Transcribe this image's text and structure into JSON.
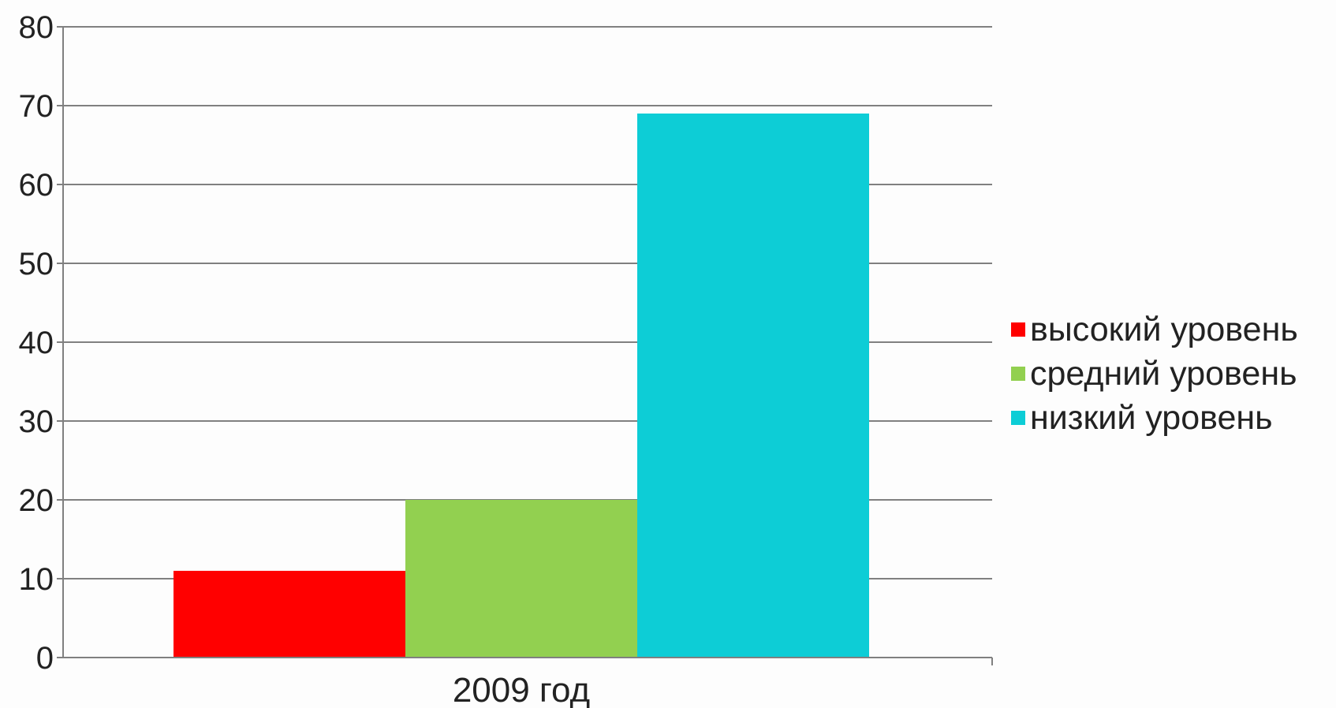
{
  "chart_data": {
    "type": "bar",
    "categories": [
      "2009 год"
    ],
    "series": [
      {
        "name": "высокий уровень",
        "values": [
          11
        ],
        "color": "#ff0000"
      },
      {
        "name": "средний уровень",
        "values": [
          20
        ],
        "color": "#92d050"
      },
      {
        "name": "низкий уровень",
        "values": [
          69
        ],
        "color": "#0dcdd6"
      }
    ],
    "ylim": [
      0,
      80
    ],
    "yticks": [
      "0",
      "10",
      "20",
      "30",
      "40",
      "50",
      "60",
      "70",
      "80"
    ],
    "grid": true,
    "legend_position": "right",
    "title": "",
    "xlabel": "",
    "ylabel": ""
  }
}
